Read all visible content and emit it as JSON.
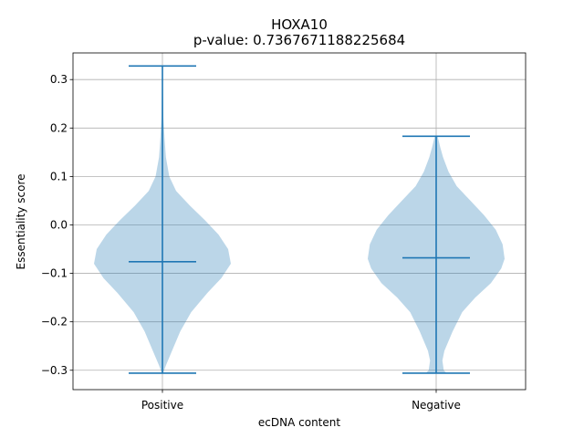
{
  "chart_data": {
    "type": "violin",
    "title": "HOXA10",
    "subtitle": "p-value: 0.7367671188225684",
    "xlabel": "ecDNA content",
    "ylabel": "Essentiality score",
    "categories": [
      "Positive",
      "Negative"
    ],
    "ylim": [
      -0.34,
      0.355
    ],
    "yticks": [
      -0.3,
      -0.2,
      -0.1,
      0.0,
      0.1,
      0.2,
      0.3
    ],
    "ytick_labels": [
      "−0.3",
      "−0.2",
      "−0.1",
      "0.0",
      "0.1",
      "0.2",
      "0.3"
    ],
    "grid": true,
    "series": [
      {
        "category": "Positive",
        "min": -0.306,
        "median": -0.076,
        "max": 0.328,
        "density_profile": [
          [
            -0.306,
            0.01
          ],
          [
            -0.29,
            0.05
          ],
          [
            -0.26,
            0.14
          ],
          [
            -0.22,
            0.26
          ],
          [
            -0.18,
            0.42
          ],
          [
            -0.14,
            0.66
          ],
          [
            -0.11,
            0.86
          ],
          [
            -0.08,
            1.0
          ],
          [
            -0.05,
            0.96
          ],
          [
            -0.02,
            0.82
          ],
          [
            0.01,
            0.62
          ],
          [
            0.04,
            0.4
          ],
          [
            0.07,
            0.2
          ],
          [
            0.1,
            0.1
          ],
          [
            0.14,
            0.05
          ],
          [
            0.18,
            0.03
          ],
          [
            0.22,
            0.015
          ],
          [
            0.26,
            0.01
          ],
          [
            0.3,
            0.006
          ],
          [
            0.328,
            0.004
          ]
        ]
      },
      {
        "category": "Negative",
        "min": -0.306,
        "median": -0.068,
        "max": 0.183,
        "density_profile": [
          [
            -0.306,
            0.15
          ],
          [
            -0.3,
            0.11
          ],
          [
            -0.28,
            0.09
          ],
          [
            -0.26,
            0.12
          ],
          [
            -0.22,
            0.24
          ],
          [
            -0.18,
            0.38
          ],
          [
            -0.15,
            0.57
          ],
          [
            -0.12,
            0.8
          ],
          [
            -0.09,
            0.95
          ],
          [
            -0.07,
            1.0
          ],
          [
            -0.04,
            0.97
          ],
          [
            -0.01,
            0.87
          ],
          [
            0.02,
            0.7
          ],
          [
            0.05,
            0.5
          ],
          [
            0.08,
            0.3
          ],
          [
            0.11,
            0.18
          ],
          [
            0.14,
            0.1
          ],
          [
            0.16,
            0.06
          ],
          [
            0.183,
            0.02
          ]
        ]
      }
    ],
    "colors": {
      "violin_fill": "#1f77b4",
      "violin_fill_opacity": 0.3,
      "line": "#1f77b4",
      "grid": "#b0b0b0"
    }
  }
}
